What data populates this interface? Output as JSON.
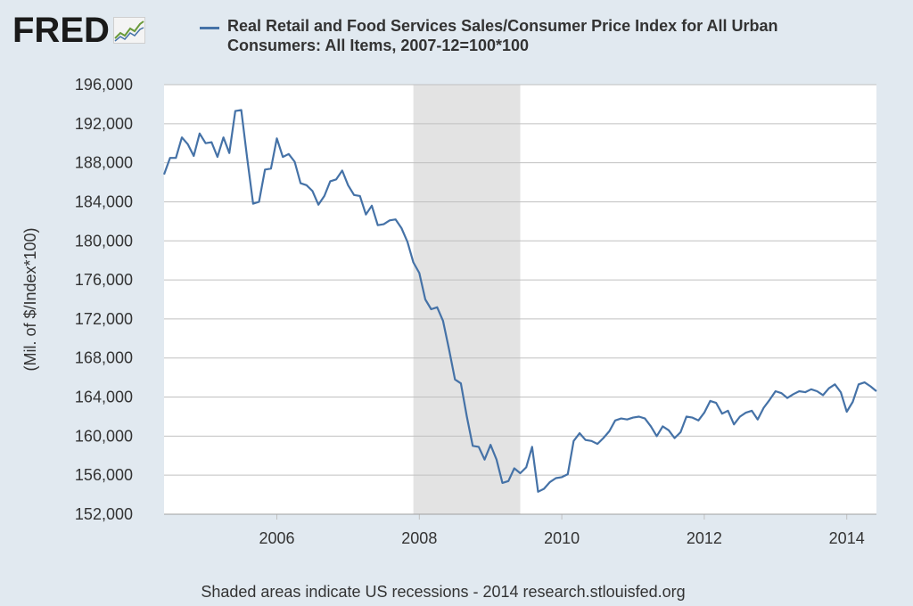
{
  "header": {
    "logo_text": "FRED",
    "legend_label": "Real Retail and Food Services Sales/Consumer Price Index for All Urban Consumers: All Items, 2007-12=100*100"
  },
  "footer": {
    "note": "Shaded areas indicate US recessions - 2014 research.stlouisfed.org"
  },
  "colors": {
    "series": "#4572a7",
    "recession": "#e3e3e3",
    "grid": "#c0c0c0",
    "plot_bg": "#ffffff",
    "page_bg": "#e1e9f0"
  },
  "chart_data": {
    "type": "line",
    "ylabel": "(Mil. of $/Index*100)",
    "xlabel": "",
    "ylim": [
      152000,
      196000
    ],
    "xlim": [
      "2004-06",
      "2014-06"
    ],
    "yticks": [
      152000,
      156000,
      160000,
      164000,
      168000,
      172000,
      176000,
      180000,
      184000,
      188000,
      192000,
      196000
    ],
    "ytick_labels": [
      "152,000",
      "156,000",
      "160,000",
      "164,000",
      "168,000",
      "172,000",
      "176,000",
      "180,000",
      "184,000",
      "188,000",
      "192,000",
      "196,000"
    ],
    "xticks": [
      "2006-01",
      "2008-01",
      "2010-01",
      "2012-01",
      "2014-01"
    ],
    "xtick_labels": [
      "2006",
      "2008",
      "2010",
      "2012",
      "2014"
    ],
    "grid": true,
    "recessions": [
      {
        "start": "2007-12",
        "end": "2009-06"
      }
    ],
    "series": [
      {
        "name": "Real Retail and Food Services Sales/Consumer Price Index for All Urban Consumers: All Items, 2007-12=100*100",
        "x": [
          "2004-06",
          "2004-07",
          "2004-08",
          "2004-09",
          "2004-10",
          "2004-11",
          "2004-12",
          "2005-01",
          "2005-02",
          "2005-03",
          "2005-04",
          "2005-05",
          "2005-06",
          "2005-07",
          "2005-08",
          "2005-09",
          "2005-10",
          "2005-11",
          "2005-12",
          "2006-01",
          "2006-02",
          "2006-03",
          "2006-04",
          "2006-05",
          "2006-06",
          "2006-07",
          "2006-08",
          "2006-09",
          "2006-10",
          "2006-11",
          "2006-12",
          "2007-01",
          "2007-02",
          "2007-03",
          "2007-04",
          "2007-05",
          "2007-06",
          "2007-07",
          "2007-08",
          "2007-09",
          "2007-10",
          "2007-11",
          "2007-12",
          "2008-01",
          "2008-02",
          "2008-03",
          "2008-04",
          "2008-05",
          "2008-06",
          "2008-07",
          "2008-08",
          "2008-09",
          "2008-10",
          "2008-11",
          "2008-12",
          "2009-01",
          "2009-02",
          "2009-03",
          "2009-04",
          "2009-05",
          "2009-06",
          "2009-07",
          "2009-08",
          "2009-09",
          "2009-10",
          "2009-11",
          "2009-12",
          "2010-01",
          "2010-02",
          "2010-03",
          "2010-04",
          "2010-05",
          "2010-06",
          "2010-07",
          "2010-08",
          "2010-09",
          "2010-10",
          "2010-11",
          "2010-12",
          "2011-01",
          "2011-02",
          "2011-03",
          "2011-04",
          "2011-05",
          "2011-06",
          "2011-07",
          "2011-08",
          "2011-09",
          "2011-10",
          "2011-11",
          "2011-12",
          "2012-01",
          "2012-02",
          "2012-03",
          "2012-04",
          "2012-05",
          "2012-06",
          "2012-07",
          "2012-08",
          "2012-09",
          "2012-10",
          "2012-11",
          "2012-12",
          "2013-01",
          "2013-02",
          "2013-03",
          "2013-04",
          "2013-05",
          "2013-06",
          "2013-07",
          "2013-08",
          "2013-09",
          "2013-10",
          "2013-11",
          "2013-12",
          "2014-01",
          "2014-02",
          "2014-03",
          "2014-04",
          "2014-05",
          "2014-06"
        ],
        "y": [
          186800,
          188500,
          188500,
          190600,
          189900,
          188700,
          191000,
          190000,
          190100,
          188600,
          190600,
          189000,
          193300,
          193400,
          188500,
          183800,
          184000,
          187300,
          187400,
          190500,
          188600,
          188900,
          188100,
          185900,
          185700,
          185100,
          183700,
          184600,
          186100,
          186300,
          187200,
          185700,
          184700,
          184600,
          182700,
          183600,
          181600,
          181700,
          182100,
          182200,
          181300,
          179900,
          177800,
          176700,
          174000,
          173000,
          173200,
          171800,
          168900,
          165800,
          165400,
          162000,
          159000,
          158900,
          157600,
          159100,
          157600,
          155200,
          155400,
          156700,
          156200,
          156800,
          158900,
          154300,
          154600,
          155300,
          155700,
          155800,
          156100,
          159500,
          160300,
          159600,
          159500,
          159200,
          159800,
          160500,
          161600,
          161800,
          161700,
          161900,
          162000,
          161800,
          161000,
          160000,
          161000,
          160600,
          159800,
          160400,
          162000,
          161900,
          161600,
          162400,
          163600,
          163400,
          162300,
          162600,
          161200,
          162000,
          162400,
          162600,
          161700,
          162900,
          163700,
          164600,
          164400,
          163900,
          164300,
          164600,
          164500,
          164800,
          164600,
          164200,
          164900,
          165300,
          164500,
          162500,
          163500,
          165300,
          165500,
          165100,
          164600
        ]
      }
    ]
  }
}
